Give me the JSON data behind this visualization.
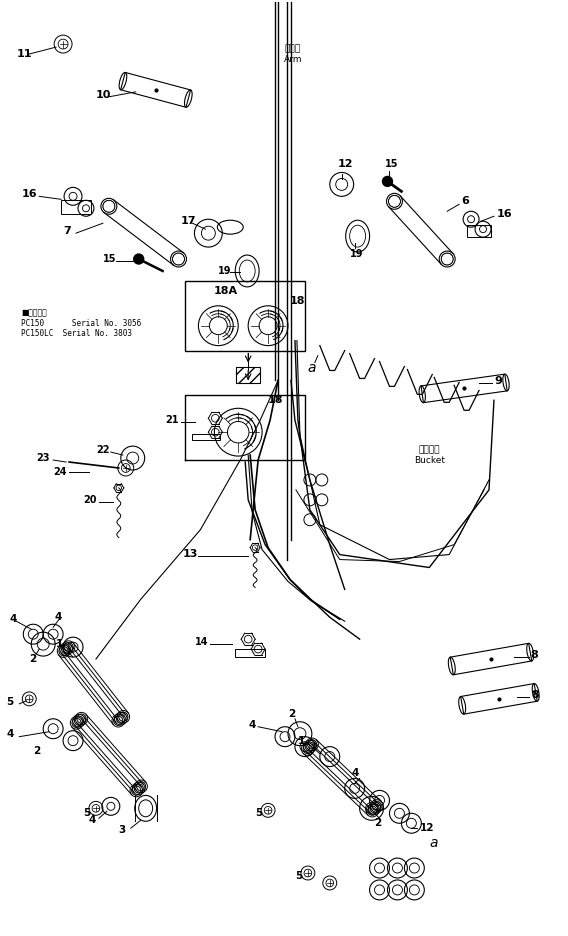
{
  "background_color": "#ffffff",
  "line_color": "#000000",
  "figsize": [
    5.68,
    9.36
  ],
  "dpi": 100,
  "arm_label": "アーム\nArm",
  "bucket_label": "バケット\nBucket",
  "serial_line1": "■用分刀数",
  "serial_line2": "PC150      Serial No. 3056",
  "serial_line3": "PC150LC  Serial No. 3803"
}
